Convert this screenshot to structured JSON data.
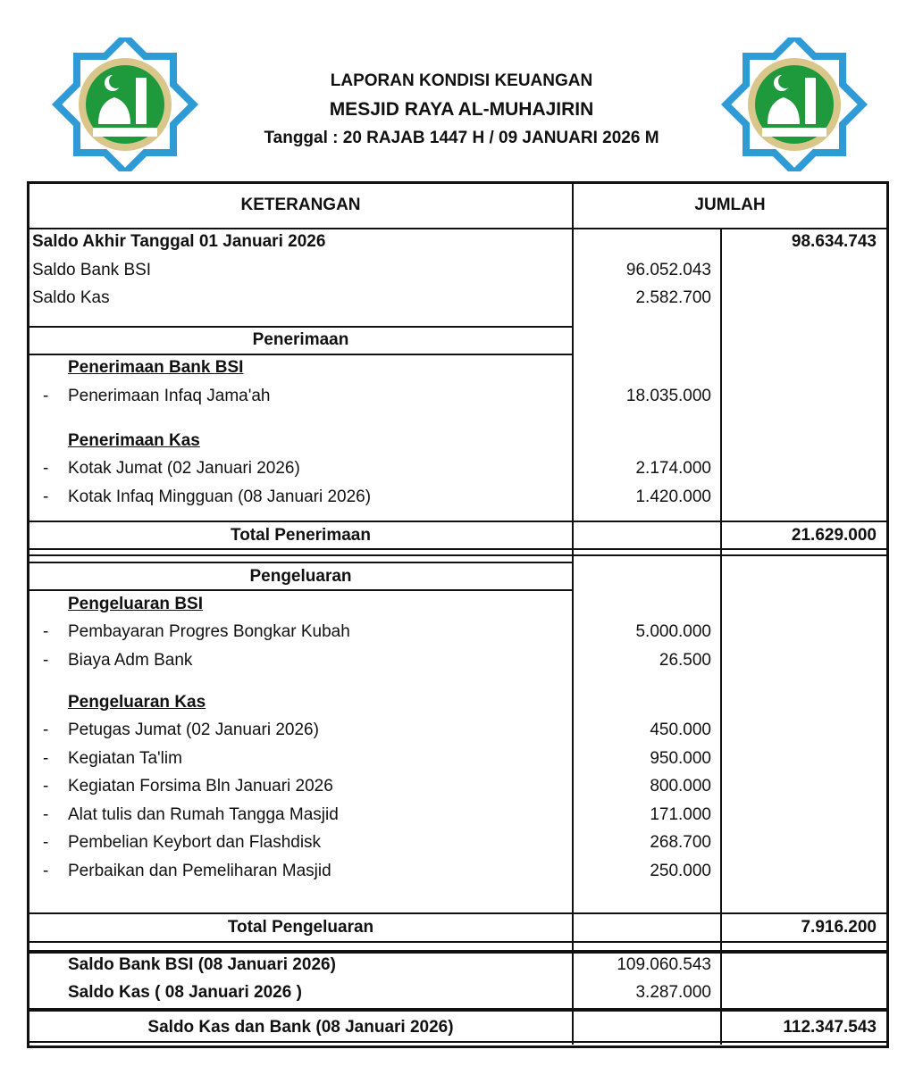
{
  "header": {
    "line1": "LAPORAN KONDISI KEUANGAN",
    "line2": "MESJID RAYA AL-MUHAJIRIN",
    "line3": "Tanggal  :  20  RAJAB  1447 H / 09 JANUARI 2026 M",
    "logo_text": "Masjid Raya Al-Muhajirin",
    "logo_colors": {
      "star": "#2f9bd6",
      "rays": "#d9c68a",
      "circle": "#1e9a3c"
    }
  },
  "table": {
    "col_keterangan": "KETERANGAN",
    "col_jumlah": "JUMLAH",
    "saldo_awal": {
      "label": "Saldo Akhir Tanggal 01 Januari  2026",
      "total": "98.634.743",
      "bank_label": "Saldo  Bank BSI",
      "bank_value": "96.052.043",
      "kas_label": "Saldo Kas",
      "kas_value": "2.582.700"
    },
    "penerimaan": {
      "title": "Penerimaan",
      "bank_heading": "Penerimaan Bank  BSI",
      "bank_items": [
        {
          "dash": "-",
          "label": "Penerimaan Infaq Jama'ah",
          "value": "18.035.000"
        }
      ],
      "kas_heading": "Penerimaan Kas",
      "kas_items": [
        {
          "dash": "-",
          "label": "Kotak Jumat (02 Januari 2026)",
          "value": "2.174.000"
        },
        {
          "dash": "-",
          "label": "Kotak Infaq Mingguan (08 Januari 2026)",
          "value": "1.420.000"
        }
      ],
      "total_label": "Total Penerimaan",
      "total_value": "21.629.000"
    },
    "pengeluaran": {
      "title": "Pengeluaran",
      "bank_heading": "Pengeluaran BSI",
      "bank_items": [
        {
          "dash": "-",
          "label": "Pembayaran Progres Bongkar Kubah",
          "value": "5.000.000"
        },
        {
          "dash": "-",
          "label": "Biaya Adm Bank",
          "value": "26.500"
        }
      ],
      "kas_heading": "Pengeluaran Kas",
      "kas_items": [
        {
          "dash": "-",
          "label": "Petugas Jumat (02 Januari 2026)",
          "value": "450.000"
        },
        {
          "dash": "-",
          "label": "Kegiatan Ta'lim",
          "value": "950.000"
        },
        {
          "dash": "-",
          "label": "Kegiatan Forsima Bln Januari 2026",
          "value": "800.000"
        },
        {
          "dash": "-",
          "label": "Alat tulis dan Rumah Tangga Masjid",
          "value": "171.000"
        },
        {
          "dash": "-",
          "label": "Pembelian Keybort dan Flashdisk",
          "value": "268.700"
        },
        {
          "dash": "-",
          "label": "Perbaikan dan Pemeliharan Masjid",
          "value": "250.000"
        }
      ],
      "total_label": "Total Pengeluaran",
      "total_value": "7.916.200"
    },
    "saldo_akhir": {
      "bank_label": "Saldo Bank BSI (08 Januari 2026)",
      "bank_value": "109.060.543",
      "kas_label": "Saldo Kas ( 08 Januari 2026 )",
      "kas_value": "3.287.000",
      "total_label": "Saldo Kas dan Bank (08 Januari 2026)",
      "total_value": "112.347.543"
    }
  }
}
